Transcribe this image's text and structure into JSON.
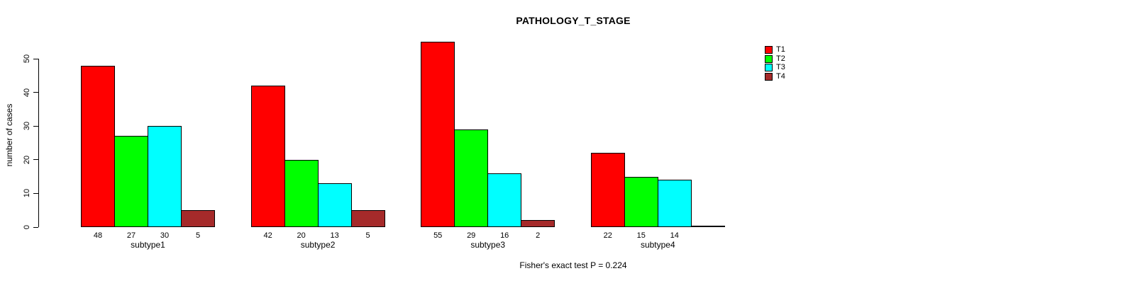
{
  "chart_data": {
    "type": "bar",
    "title": "PATHOLOGY_T_STAGE",
    "ylabel": "number of cases",
    "xlabel": "",
    "yticks": [
      0,
      10,
      20,
      30,
      40,
      50
    ],
    "ylim": [
      0,
      55
    ],
    "grid": false,
    "categories": [
      "subtype1",
      "subtype2",
      "subtype3",
      "subtype4"
    ],
    "series": [
      {
        "name": "T1",
        "color": "#FF0000",
        "values": [
          48,
          42,
          55,
          22
        ]
      },
      {
        "name": "T2",
        "color": "#00FF00",
        "values": [
          27,
          20,
          29,
          15
        ]
      },
      {
        "name": "T3",
        "color": "#00FFFF",
        "values": [
          30,
          13,
          16,
          14
        ]
      },
      {
        "name": "T4",
        "color": "#A52A2A",
        "values": [
          5,
          5,
          2,
          0
        ]
      }
    ],
    "show_bar_value_labels": true,
    "legend": {
      "position": "top-right",
      "entries": [
        "T1",
        "T2",
        "T3",
        "T4"
      ]
    },
    "annotation": "Fisher's exact test P = 0.224"
  }
}
